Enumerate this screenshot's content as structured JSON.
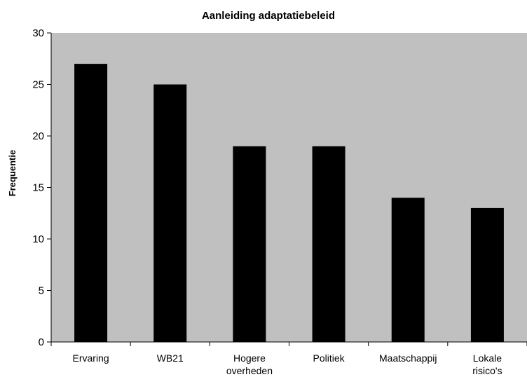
{
  "chart_data": {
    "type": "bar",
    "title": "Aanleiding adaptatiebeleid",
    "xlabel": "",
    "ylabel": "Frequentie",
    "categories": [
      [
        "Ervaring"
      ],
      [
        "WB21"
      ],
      [
        "Hogere",
        "overheden"
      ],
      [
        "Politiek"
      ],
      [
        "Maatschappij"
      ],
      [
        "Lokale",
        "risico's"
      ]
    ],
    "values": [
      27,
      25,
      19,
      19,
      14,
      13
    ],
    "ylim": [
      0,
      30
    ],
    "yticks": [
      0,
      5,
      10,
      15,
      20,
      25,
      30
    ],
    "grid": false,
    "legend": "none",
    "colors": {
      "plot_background": "#c0c0c0",
      "bar": "#000000",
      "axis": "#000000"
    }
  }
}
